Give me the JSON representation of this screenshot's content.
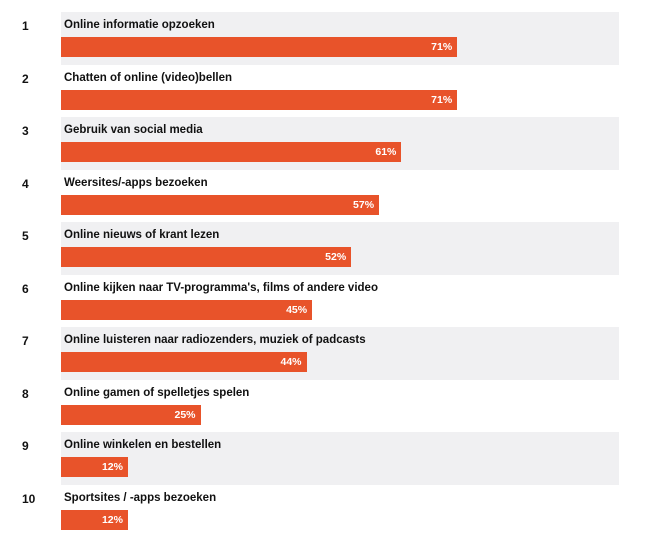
{
  "chart_data": {
    "type": "bar",
    "orientation": "horizontal",
    "bar_color": "#e8532a",
    "band_color": "#f0f0f2",
    "ranks": [
      "1",
      "2",
      "3",
      "4",
      "5",
      "6",
      "7",
      "8",
      "9",
      "10"
    ],
    "categories": [
      "Online informatie opzoeken",
      "Chatten of online (video)bellen",
      "Gebruik van social media",
      "Weersites/-apps bezoeken",
      "Online nieuws of krant lezen",
      "Online kijken naar TV-programma's, films of andere video",
      "Online luisteren naar radiozenders, muziek of padcasts",
      "Online gamen of spelletjes spelen",
      "Online winkelen en bestellen",
      "Sportsites / -apps bezoeken"
    ],
    "values": [
      71,
      71,
      61,
      57,
      52,
      45,
      44,
      25,
      12,
      12
    ],
    "value_labels": [
      "71%",
      "71%",
      "61%",
      "57%",
      "52%",
      "45%",
      "44%",
      "25%",
      "12%",
      "12%"
    ],
    "unit": "%"
  }
}
